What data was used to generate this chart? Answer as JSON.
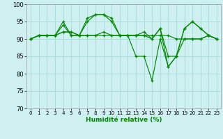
{
  "xlabel": "Humidité relative (%)",
  "xlim": [
    -0.5,
    23.5
  ],
  "ylim": [
    70,
    100
  ],
  "yticks": [
    70,
    75,
    80,
    85,
    90,
    95,
    100
  ],
  "xticks": [
    0,
    1,
    2,
    3,
    4,
    5,
    6,
    7,
    8,
    9,
    10,
    11,
    12,
    13,
    14,
    15,
    16,
    17,
    18,
    19,
    20,
    21,
    22,
    23
  ],
  "background_color": "#cff0f0",
  "grid_color": "#aadddd",
  "line_color": "#008800",
  "lines": [
    [
      90,
      91,
      91,
      91,
      95,
      91,
      91,
      96,
      97,
      97,
      96,
      91,
      91,
      91,
      91,
      90,
      93,
      82,
      85,
      93,
      95,
      93,
      91,
      90
    ],
    [
      90,
      91,
      91,
      91,
      94,
      91,
      91,
      95,
      97,
      97,
      95,
      91,
      91,
      85,
      85,
      78,
      90,
      82,
      85,
      93,
      95,
      93,
      91,
      90
    ],
    [
      90,
      91,
      91,
      91,
      92,
      92,
      91,
      91,
      91,
      91,
      91,
      91,
      91,
      91,
      91,
      91,
      91,
      91,
      90,
      90,
      90,
      90,
      91,
      90
    ],
    [
      90,
      91,
      91,
      91,
      92,
      92,
      91,
      91,
      91,
      92,
      91,
      91,
      91,
      91,
      92,
      90,
      93,
      85,
      85,
      90,
      90,
      90,
      91,
      90
    ]
  ]
}
